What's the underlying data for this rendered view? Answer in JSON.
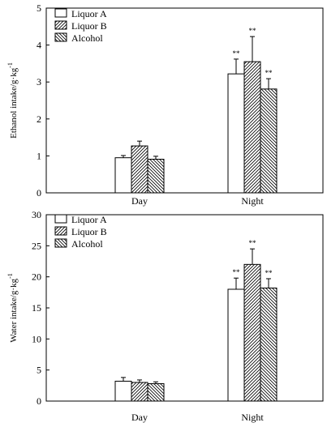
{
  "chart_data": [
    {
      "type": "bar",
      "ylabel": "Ethanol intake/g·kg",
      "ylabel_sup": "-1",
      "categories": [
        "Day",
        "Night"
      ],
      "ylim": [
        0,
        5
      ],
      "yticks": [
        "0",
        "1",
        "2",
        "3",
        "4",
        "5"
      ],
      "legend_position": "top-left",
      "series": [
        {
          "name": "Liquor A",
          "pattern": "none",
          "values": [
            0.95,
            3.22
          ],
          "errors": [
            0.06,
            0.4
          ],
          "marks": [
            "",
            "**"
          ]
        },
        {
          "name": "Liquor B",
          "pattern": "fwd",
          "values": [
            1.27,
            3.55
          ],
          "errors": [
            0.13,
            0.68
          ],
          "marks": [
            "",
            "**"
          ]
        },
        {
          "name": "Alcohol",
          "pattern": "back",
          "values": [
            0.91,
            2.81
          ],
          "errors": [
            0.08,
            0.28
          ],
          "marks": [
            "",
            "**"
          ]
        }
      ]
    },
    {
      "type": "bar",
      "ylabel": "Water intake/g·kg",
      "ylabel_sup": "-1",
      "categories": [
        "Day",
        "Night"
      ],
      "ylim": [
        0,
        30
      ],
      "yticks": [
        "0",
        "5",
        "10",
        "15",
        "20",
        "25",
        "30"
      ],
      "legend_position": "top-left",
      "series": [
        {
          "name": "Liquor A",
          "pattern": "none",
          "values": [
            3.2,
            18.0
          ],
          "errors": [
            0.6,
            1.8
          ],
          "marks": [
            "",
            "**"
          ]
        },
        {
          "name": "Liquor B",
          "pattern": "fwd",
          "values": [
            3.0,
            22.0
          ],
          "errors": [
            0.4,
            2.5
          ],
          "marks": [
            "",
            "**"
          ]
        },
        {
          "name": "Alcohol",
          "pattern": "back",
          "values": [
            2.8,
            18.2
          ],
          "errors": [
            0.3,
            1.5
          ],
          "marks": [
            "",
            "**"
          ]
        }
      ]
    }
  ]
}
